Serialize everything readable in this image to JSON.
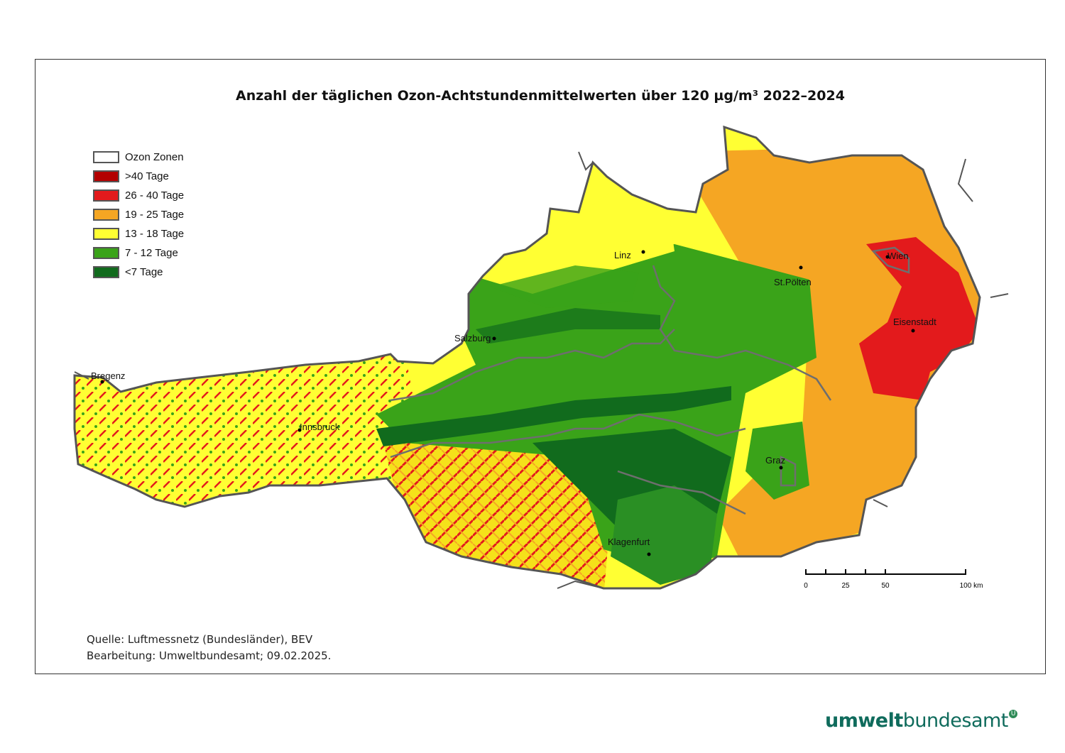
{
  "title": "Anzahl der täglichen Ozon-Achtstundenmittelwerten über 120 µg/m³ 2022–2024",
  "legend": [
    {
      "label": "Ozon Zonen",
      "color": "#ffffff"
    },
    {
      "label": ">40 Tage",
      "color": "#b30000"
    },
    {
      "label": "26 - 40 Tage",
      "color": "#e31a1c"
    },
    {
      "label": "19 - 25 Tage",
      "color": "#f5a623"
    },
    {
      "label": "13 - 18 Tage",
      "color": "#ffff33"
    },
    {
      "label": "7 - 12 Tage",
      "color": "#3aa319"
    },
    {
      "label": "<7 Tage",
      "color": "#116b1d"
    }
  ],
  "cities": [
    "Bregenz",
    "Innsbruck",
    "Salzburg",
    "Linz",
    "St.Pölten",
    "Wien",
    "Eisenstadt",
    "Graz",
    "Klagenfurt"
  ],
  "scale": {
    "ticks": [
      "0",
      "25",
      "50",
      "100 km"
    ]
  },
  "source": {
    "line1": "Quelle: Luftmessnetz (Bundesländer), BEV",
    "line2": "Bearbeitung: Umweltbundesamt; 09.02.2025."
  },
  "logo": {
    "bold": "umwelt",
    "rest": "bundesamt",
    "mark": "U"
  }
}
